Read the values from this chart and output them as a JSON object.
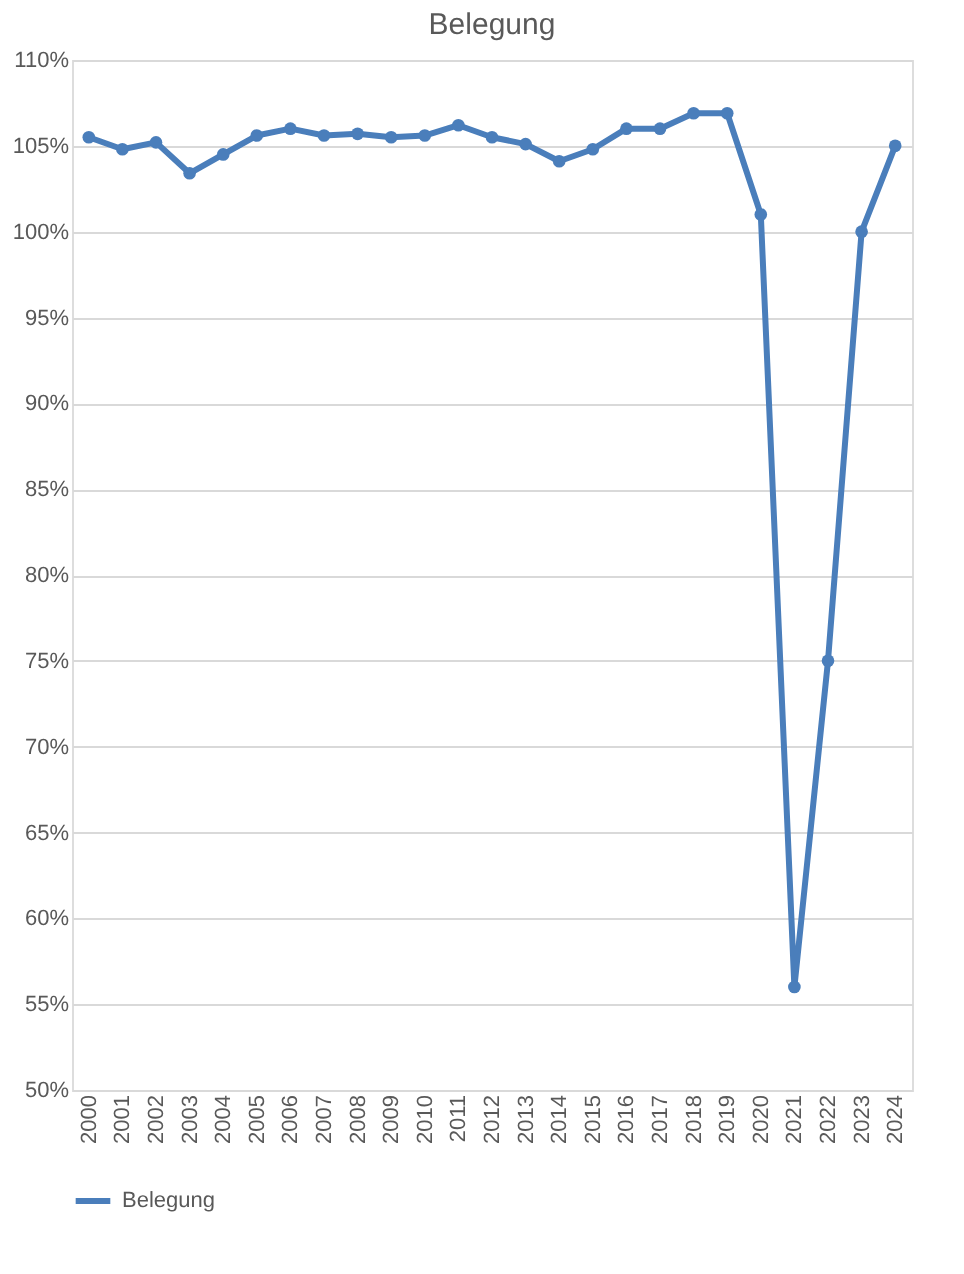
{
  "chart_data": {
    "type": "line",
    "title": "Belegung",
    "categories": [
      "2000",
      "2001",
      "2002",
      "2003",
      "2004",
      "2005",
      "2006",
      "2007",
      "2008",
      "2009",
      "2010",
      "2011",
      "2012",
      "2013",
      "2014",
      "2015",
      "2016",
      "2017",
      "2018",
      "2019",
      "2020",
      "2021",
      "2022",
      "2023",
      "2024"
    ],
    "series": [
      {
        "name": "Belegung",
        "color": "#4a7ebb",
        "values": [
          105.5,
          104.8,
          105.2,
          103.4,
          104.5,
          105.6,
          106.0,
          105.6,
          105.7,
          105.5,
          105.6,
          106.2,
          105.5,
          105.1,
          104.1,
          104.8,
          106.0,
          106.0,
          106.9,
          106.9,
          101.0,
          56,
          75,
          100,
          105
        ]
      }
    ],
    "ylim": [
      50,
      110
    ],
    "yticks": [
      {
        "value": 50,
        "label": "50%"
      },
      {
        "value": 55,
        "label": "55%"
      },
      {
        "value": 60,
        "label": "60%"
      },
      {
        "value": 65,
        "label": "65%"
      },
      {
        "value": 70,
        "label": "70%"
      },
      {
        "value": 75,
        "label": "75%"
      },
      {
        "value": 80,
        "label": "80%"
      },
      {
        "value": 85,
        "label": "85%"
      },
      {
        "value": 90,
        "label": "90%"
      },
      {
        "value": 95,
        "label": "95%"
      },
      {
        "value": 100,
        "label": "100%"
      },
      {
        "value": 105,
        "label": "105%"
      },
      {
        "value": 110,
        "label": "110%"
      }
    ],
    "grid": "y",
    "legend": "bottom",
    "marker": "circle",
    "line_style": "solid"
  }
}
